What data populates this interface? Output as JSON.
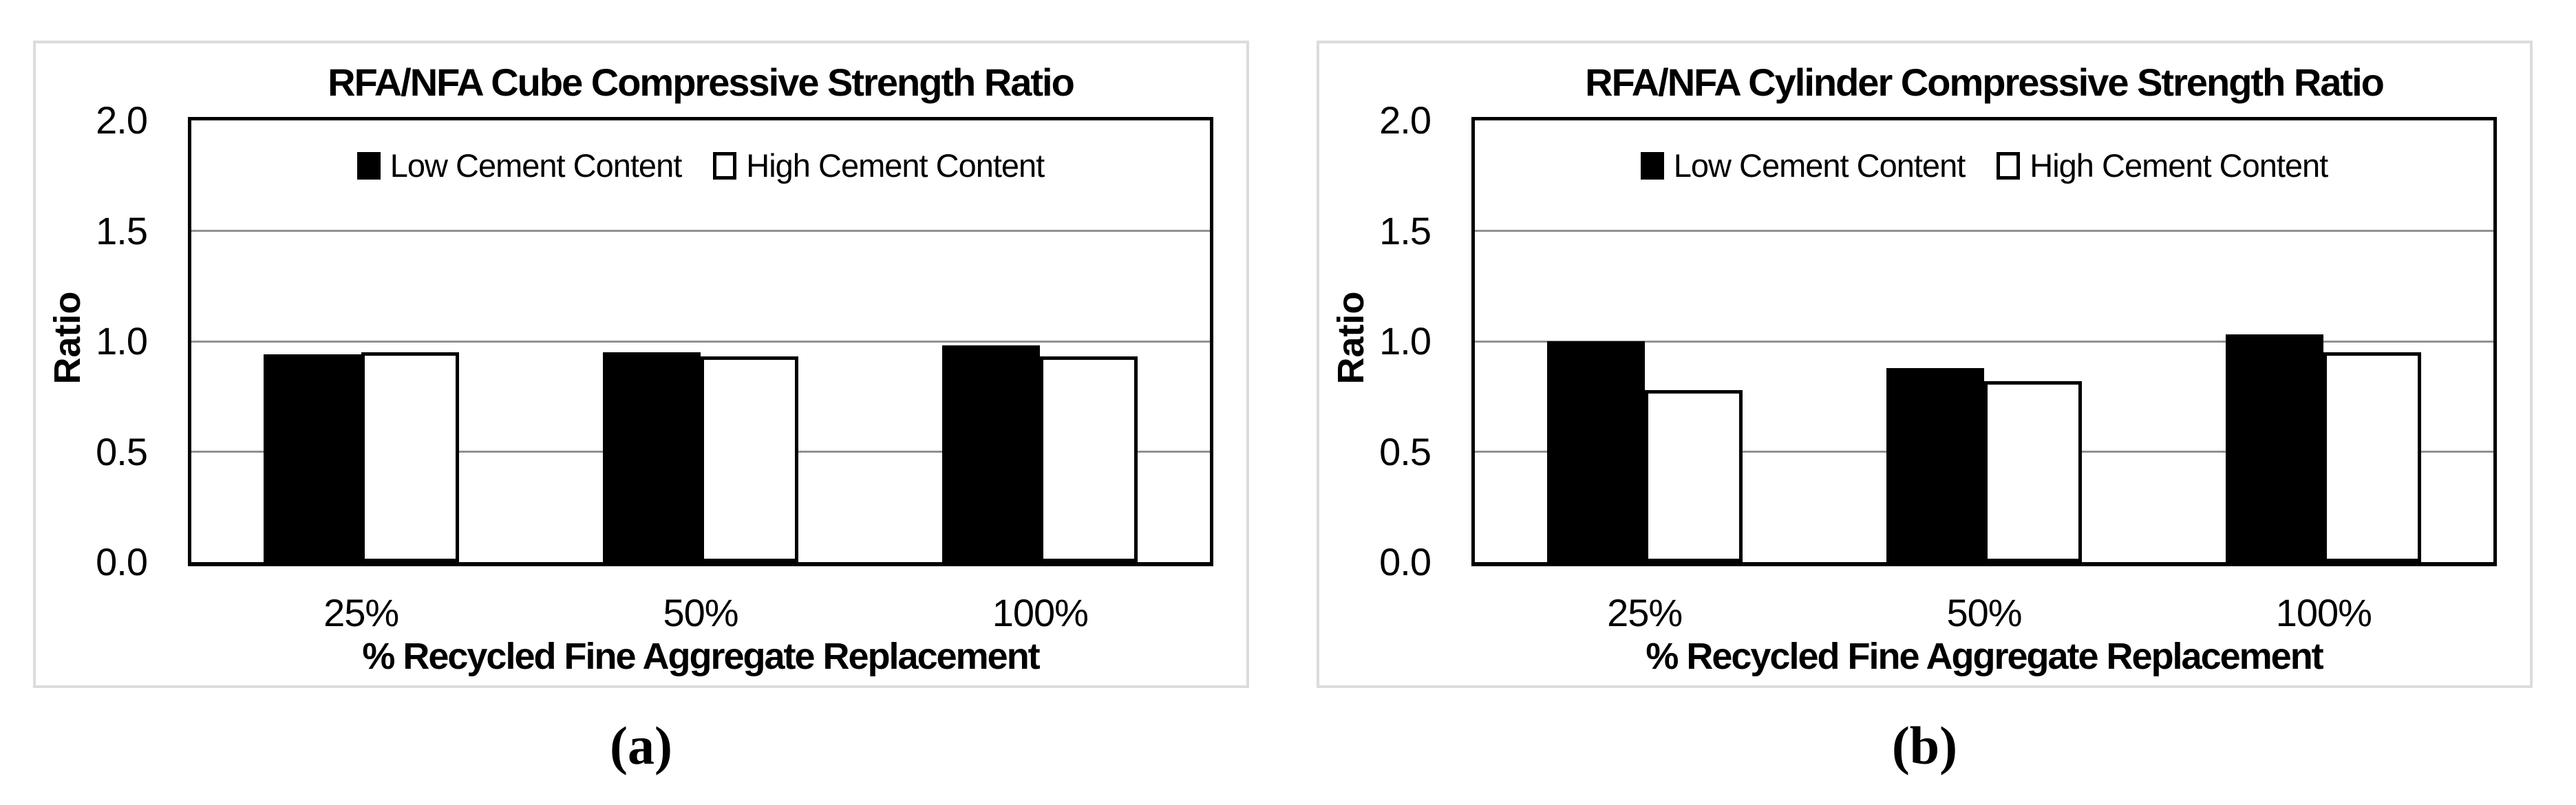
{
  "figure": {
    "captions": [
      "(a)",
      "(b)"
    ]
  },
  "colors": {
    "background": "#ffffff",
    "panel_border": "#dcdcdc",
    "plot_border": "#000000",
    "gridline": "#919191",
    "bar_low_fill": "#000000",
    "bar_high_fill": "#ffffff",
    "bar_high_border": "#000000",
    "text": "#000000"
  },
  "chart_data": [
    {
      "type": "bar",
      "title": "RFA/NFA Cube Compressive Strength Ratio",
      "ylabel": "Ratio",
      "xlabel": "% Recycled Fine Aggregate Replacement",
      "categories": [
        "25%",
        "50%",
        "100%"
      ],
      "series": [
        {
          "name": "Low Cement Content",
          "values": [
            0.94,
            0.95,
            0.98
          ]
        },
        {
          "name": "High Cement Content",
          "values": [
            0.95,
            0.93,
            0.93
          ]
        }
      ],
      "ylim": [
        0.0,
        2.0
      ],
      "y_ticks": [
        0.0,
        0.5,
        1.0,
        1.5,
        2.0
      ],
      "y_tick_labels": [
        "0.0",
        "0.5",
        "1.0",
        "1.5",
        "2.0"
      ],
      "grid": true,
      "legend_position": "top-center"
    },
    {
      "type": "bar",
      "title": "RFA/NFA Cylinder Compressive Strength Ratio",
      "ylabel": "Ratio",
      "xlabel": "% Recycled Fine Aggregate Replacement",
      "categories": [
        "25%",
        "50%",
        "100%"
      ],
      "series": [
        {
          "name": "Low Cement Content",
          "values": [
            1.0,
            0.88,
            1.03
          ]
        },
        {
          "name": "High Cement Content",
          "values": [
            0.78,
            0.82,
            0.95
          ]
        }
      ],
      "ylim": [
        0.0,
        2.0
      ],
      "y_ticks": [
        0.0,
        0.5,
        1.0,
        1.5,
        2.0
      ],
      "y_tick_labels": [
        "0.0",
        "0.5",
        "1.0",
        "1.5",
        "2.0"
      ],
      "grid": true,
      "legend_position": "top-center"
    }
  ]
}
